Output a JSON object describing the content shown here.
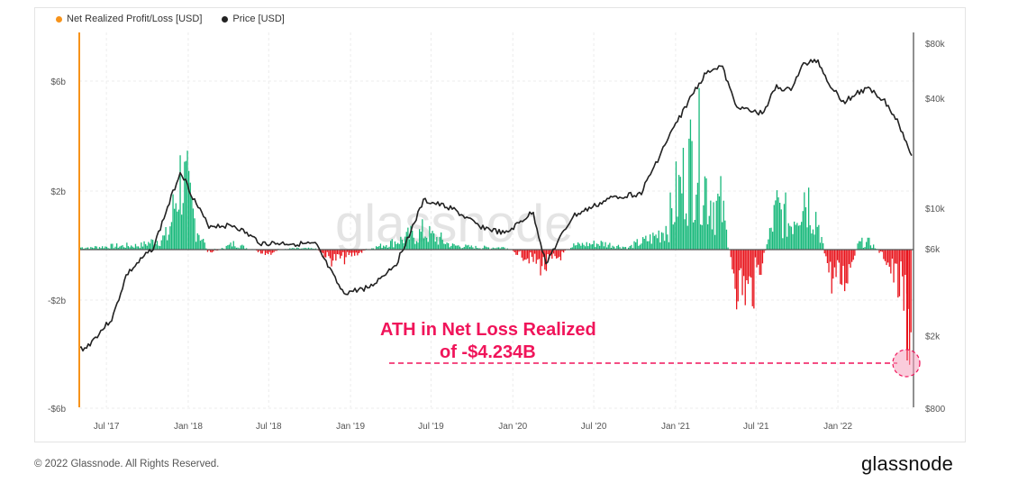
{
  "legend": {
    "items": [
      {
        "label": "Net Realized Profit/Loss [USD]",
        "color": "#f7931a"
      },
      {
        "label": "Price [USD]",
        "color": "#222222"
      }
    ]
  },
  "watermark": "glassnode",
  "annotation": {
    "line1": "ATH in Net Loss Realized",
    "line2": "of -$4.234B",
    "color": "#f0145a"
  },
  "footer": {
    "copyright": "© 2022 Glassnode. All Rights Reserved.",
    "brand": "glassnode"
  },
  "chart_data": {
    "type": "bar",
    "left_axis": {
      "ticks": [
        {
          "label": "$6b",
          "value": 6
        },
        {
          "label": "$2b",
          "value": 2
        },
        {
          "label": "-$2b",
          "value": -2
        },
        {
          "label": "-$6b",
          "value": -6
        }
      ],
      "scale": "symlog"
    },
    "right_axis": {
      "ticks": [
        {
          "label": "$80k",
          "value": 80000
        },
        {
          "label": "$40k",
          "value": 40000
        },
        {
          "label": "$10k",
          "value": 10000
        },
        {
          "label": "$6k",
          "value": 6000
        },
        {
          "label": "$2k",
          "value": 2000
        },
        {
          "label": "$800",
          "value": 800
        }
      ],
      "scale": "log"
    },
    "x_ticks": [
      "Jul '17",
      "Jan '18",
      "Jul '18",
      "Jan '19",
      "Jul '19",
      "Jan '20",
      "Jul '20",
      "Jan '21",
      "Jul '21",
      "Jan '22"
    ],
    "x_range": [
      "2017-05-01",
      "2022-06-20"
    ],
    "colors": {
      "profit": "#17b87a",
      "loss": "#e8141c",
      "price": "#222222"
    },
    "net_realized_pl_busd": [
      {
        "x": "2017-05",
        "y": 0.1
      },
      {
        "x": "2017-07",
        "y": 0.15
      },
      {
        "x": "2017-09",
        "y": 0.2
      },
      {
        "x": "2017-11",
        "y": 0.6
      },
      {
        "x": "2017-12",
        "y": 3.6
      },
      {
        "x": "2018-01",
        "y": 1.3
      },
      {
        "x": "2018-02",
        "y": -0.2
      },
      {
        "x": "2018-04",
        "y": 0.3
      },
      {
        "x": "2018-06",
        "y": -0.25
      },
      {
        "x": "2018-08",
        "y": 0.05
      },
      {
        "x": "2018-10",
        "y": 0.05
      },
      {
        "x": "2018-11",
        "y": -0.5
      },
      {
        "x": "2018-12",
        "y": -0.45
      },
      {
        "x": "2019-02",
        "y": 0.05
      },
      {
        "x": "2019-04",
        "y": 0.4
      },
      {
        "x": "2019-06",
        "y": 0.8
      },
      {
        "x": "2019-08",
        "y": 0.2
      },
      {
        "x": "2019-10",
        "y": 0.1
      },
      {
        "x": "2019-12",
        "y": 0.1
      },
      {
        "x": "2020-03",
        "y": -0.9
      },
      {
        "x": "2020-05",
        "y": 0.2
      },
      {
        "x": "2020-07",
        "y": 0.3
      },
      {
        "x": "2020-09",
        "y": 0.1
      },
      {
        "x": "2020-11",
        "y": 0.6
      },
      {
        "x": "2020-12",
        "y": 1.2
      },
      {
        "x": "2021-01",
        "y": 3.2
      },
      {
        "x": "2021-02",
        "y": 4.8
      },
      {
        "x": "2021-03",
        "y": 2.5
      },
      {
        "x": "2021-04",
        "y": 1.8
      },
      {
        "x": "2021-05",
        "y": -1.7
      },
      {
        "x": "2021-06",
        "y": -2.3
      },
      {
        "x": "2021-07",
        "y": -0.5
      },
      {
        "x": "2021-08",
        "y": 1.9
      },
      {
        "x": "2021-09",
        "y": 1.2
      },
      {
        "x": "2021-10",
        "y": 2.8
      },
      {
        "x": "2021-11",
        "y": 1.4
      },
      {
        "x": "2021-12",
        "y": -1.5
      },
      {
        "x": "2022-01",
        "y": -1.6
      },
      {
        "x": "2022-02",
        "y": 0.3
      },
      {
        "x": "2022-03",
        "y": 0.3
      },
      {
        "x": "2022-04",
        "y": -0.4
      },
      {
        "x": "2022-05",
        "y": -1.8
      },
      {
        "x": "2022-06",
        "y": -4.234
      }
    ],
    "price_usd": [
      {
        "x": "2017-05",
        "y": 1700
      },
      {
        "x": "2017-07",
        "y": 2500
      },
      {
        "x": "2017-08",
        "y": 4300
      },
      {
        "x": "2017-10",
        "y": 6100
      },
      {
        "x": "2017-12",
        "y": 16000
      },
      {
        "x": "2018-01",
        "y": 11000
      },
      {
        "x": "2018-02",
        "y": 8000
      },
      {
        "x": "2018-04",
        "y": 8000
      },
      {
        "x": "2018-06",
        "y": 6400
      },
      {
        "x": "2018-08",
        "y": 6400
      },
      {
        "x": "2018-10",
        "y": 6300
      },
      {
        "x": "2018-12",
        "y": 3400
      },
      {
        "x": "2019-02",
        "y": 3700
      },
      {
        "x": "2019-04",
        "y": 5000
      },
      {
        "x": "2019-06",
        "y": 11000
      },
      {
        "x": "2019-08",
        "y": 10000
      },
      {
        "x": "2019-10",
        "y": 8000
      },
      {
        "x": "2019-12",
        "y": 7200
      },
      {
        "x": "2020-02",
        "y": 9500
      },
      {
        "x": "2020-03",
        "y": 5000
      },
      {
        "x": "2020-05",
        "y": 9000
      },
      {
        "x": "2020-08",
        "y": 11500
      },
      {
        "x": "2020-10",
        "y": 12000
      },
      {
        "x": "2020-12",
        "y": 24000
      },
      {
        "x": "2021-01",
        "y": 33000
      },
      {
        "x": "2021-02",
        "y": 45000
      },
      {
        "x": "2021-03",
        "y": 57000
      },
      {
        "x": "2021-04",
        "y": 60000
      },
      {
        "x": "2021-05",
        "y": 37000
      },
      {
        "x": "2021-06",
        "y": 34000
      },
      {
        "x": "2021-07",
        "y": 33000
      },
      {
        "x": "2021-08",
        "y": 46000
      },
      {
        "x": "2021-09",
        "y": 44000
      },
      {
        "x": "2021-10",
        "y": 61000
      },
      {
        "x": "2021-11",
        "y": 65000
      },
      {
        "x": "2021-12",
        "y": 47000
      },
      {
        "x": "2022-01",
        "y": 38000
      },
      {
        "x": "2022-02",
        "y": 43000
      },
      {
        "x": "2022-03",
        "y": 45000
      },
      {
        "x": "2022-04",
        "y": 39000
      },
      {
        "x": "2022-05",
        "y": 30000
      },
      {
        "x": "2022-06",
        "y": 20000
      }
    ],
    "highlight_point": {
      "x": "2022-06",
      "y": -4.234
    }
  }
}
